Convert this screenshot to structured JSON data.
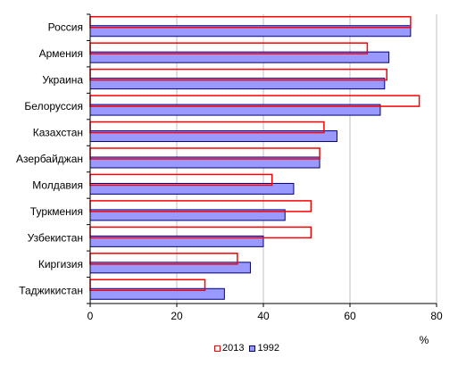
{
  "chart_data": {
    "type": "bar",
    "orientation": "horizontal",
    "categories": [
      "Россия",
      "Армения",
      "Украина",
      "Белоруссия",
      "Казахстан",
      "Азербайджан",
      "Молдавия",
      "Туркмения",
      "Узбекистан",
      "Киргизия",
      "Таджикистан"
    ],
    "series": [
      {
        "name": "2013",
        "values": [
          74,
          64,
          68.5,
          76,
          54,
          53,
          42,
          51,
          51,
          34,
          26.5
        ],
        "stroke": "#ff0000",
        "fill": "none"
      },
      {
        "name": "1992",
        "values": [
          74,
          69,
          68,
          67,
          57,
          53,
          47,
          45,
          40,
          37,
          31
        ],
        "stroke": "#000080",
        "fill": "#9999ff"
      }
    ],
    "xlabel": "%",
    "xlim": [
      0,
      80
    ],
    "xticks": [
      0,
      20,
      40,
      60,
      80
    ],
    "grid": true,
    "legend_placement": "bottom"
  }
}
